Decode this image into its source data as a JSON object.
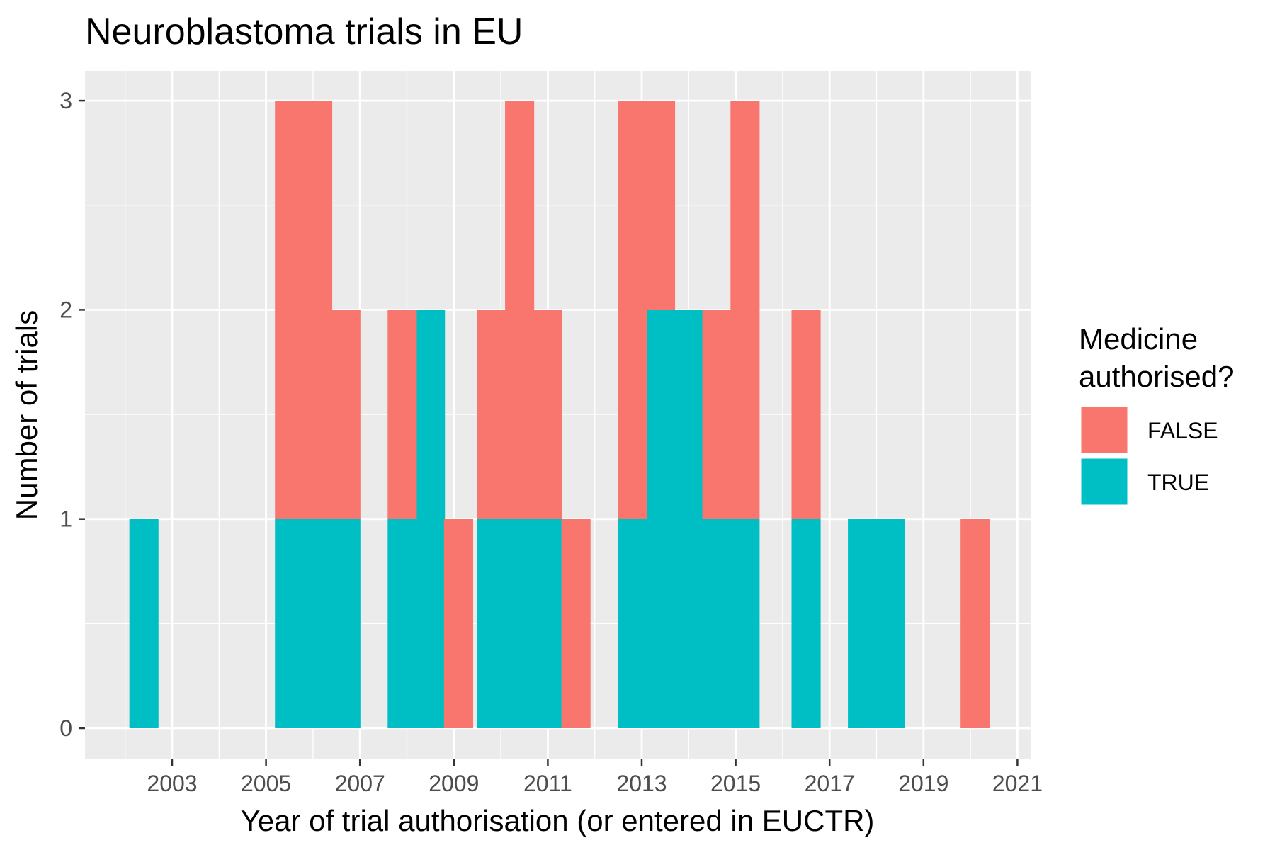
{
  "chart_data": {
    "type": "bar",
    "stacked": true,
    "title": "Neuroblastoma trials in EU",
    "xlabel": "Year of trial authorisation (or entered in EUCTR)",
    "ylabel": "Number of trials",
    "x_ticks": [
      "2003",
      "2005",
      "2007",
      "2009",
      "2011",
      "2013",
      "2015",
      "2017",
      "2019",
      "2021"
    ],
    "y_ticks": [
      "0",
      "1",
      "2",
      "3"
    ],
    "ylim": [
      0,
      3
    ],
    "bin_width_years": 0.62,
    "legend": {
      "title_lines": [
        "Medicine",
        "authorised?"
      ],
      "position": "right"
    },
    "series": [
      {
        "name": "TRUE",
        "color": "#00BFC4",
        "points": [
          {
            "x": 2002.4,
            "y": 1
          },
          {
            "x": 2005.5,
            "y": 1
          },
          {
            "x": 2006.1,
            "y": 1
          },
          {
            "x": 2006.7,
            "y": 1
          },
          {
            "x": 2007.9,
            "y": 1
          },
          {
            "x": 2008.5,
            "y": 2
          },
          {
            "x": 2009.8,
            "y": 1
          },
          {
            "x": 2010.4,
            "y": 1
          },
          {
            "x": 2011.0,
            "y": 1
          },
          {
            "x": 2012.8,
            "y": 1
          },
          {
            "x": 2013.4,
            "y": 2
          },
          {
            "x": 2014.0,
            "y": 2
          },
          {
            "x": 2014.6,
            "y": 1
          },
          {
            "x": 2015.2,
            "y": 1
          },
          {
            "x": 2016.5,
            "y": 1
          },
          {
            "x": 2017.7,
            "y": 1
          },
          {
            "x": 2018.3,
            "y": 1
          }
        ]
      },
      {
        "name": "FALSE",
        "color": "#F8766D",
        "points": [
          {
            "x": 2005.5,
            "y": 2
          },
          {
            "x": 2006.1,
            "y": 2
          },
          {
            "x": 2006.7,
            "y": 1
          },
          {
            "x": 2007.9,
            "y": 1
          },
          {
            "x": 2009.1,
            "y": 1
          },
          {
            "x": 2009.8,
            "y": 1
          },
          {
            "x": 2010.4,
            "y": 2
          },
          {
            "x": 2011.0,
            "y": 1
          },
          {
            "x": 2011.6,
            "y": 1
          },
          {
            "x": 2012.8,
            "y": 2
          },
          {
            "x": 2013.4,
            "y": 1
          },
          {
            "x": 2014.6,
            "y": 1
          },
          {
            "x": 2015.2,
            "y": 2
          },
          {
            "x": 2016.5,
            "y": 1
          },
          {
            "x": 2020.1,
            "y": 1
          }
        ]
      }
    ],
    "grid": true,
    "panel_color": "#EBEBEB"
  }
}
